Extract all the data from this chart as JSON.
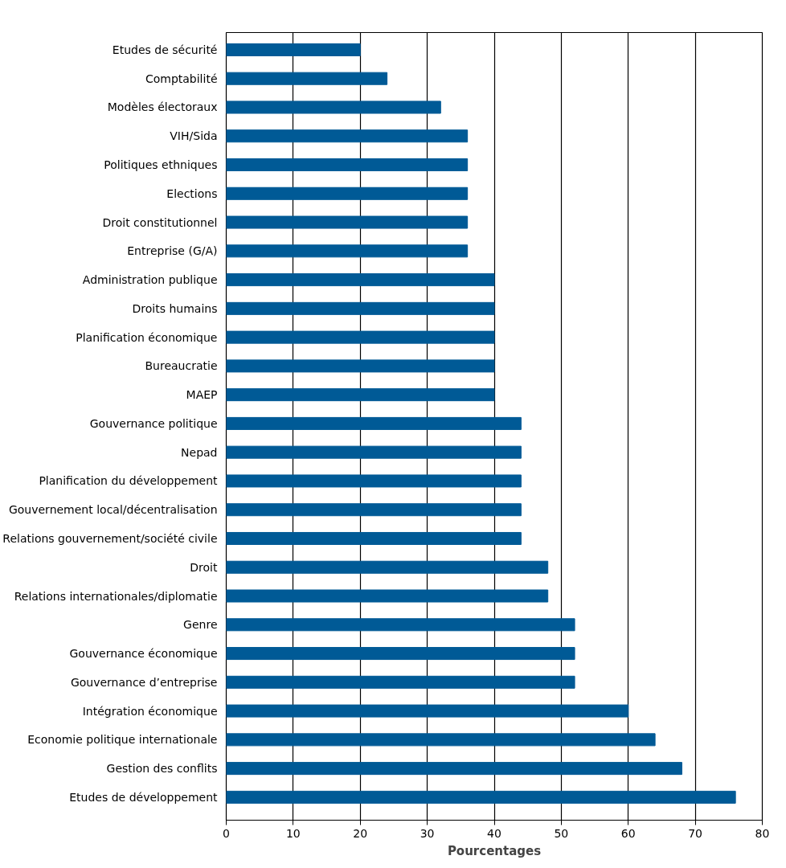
{
  "chart_data": {
    "type": "bar",
    "orientation": "horizontal",
    "xlabel": "Pourcentages",
    "categories": [
      "Etudes de sécurité",
      "Comptabilité",
      "Modèles électoraux",
      "VIH/Sida",
      "Politiques ethniques",
      "Elections",
      "Droit constitutionnel",
      "Entreprise (G/A)",
      "Administration publique",
      "Droits humains",
      "Planification économique",
      "Bureaucratie",
      "MAEP",
      "Gouvernance politique",
      "Nepad",
      "Planification du développement",
      "Gouvernement local/décentralisation",
      "Relations gouvernement/société civile",
      "Droit",
      "Relations internationales/diplomatie",
      "Genre",
      "Gouvernance économique",
      "Gouvernance d’entreprise",
      "Intégration économique",
      "Economie politique internationale",
      "Gestion des conflits",
      "Etudes de développement"
    ],
    "values": [
      20,
      24,
      32,
      36,
      36,
      36,
      36,
      36,
      40,
      40,
      40,
      40,
      40,
      44,
      44,
      44,
      44,
      44,
      48,
      48,
      52,
      52,
      52,
      60,
      64,
      68,
      76
    ],
    "color": "#005a96",
    "xlim": [
      0,
      80
    ],
    "xticks": [
      0,
      10,
      20,
      30,
      40,
      50,
      60,
      70,
      80
    ],
    "grid": "x"
  }
}
